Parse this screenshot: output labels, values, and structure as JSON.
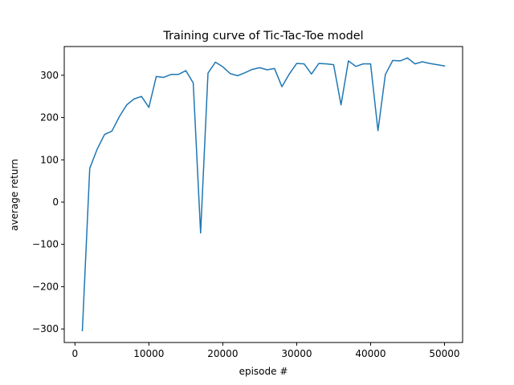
{
  "chart_data": {
    "type": "line",
    "title": "Training curve of Tic-Tac-Toe model",
    "xlabel": "episode #",
    "ylabel": "average return",
    "xlim": [
      -1450,
      52450
    ],
    "ylim": [
      -332,
      368
    ],
    "grid": false,
    "xticks": [
      0,
      10000,
      20000,
      30000,
      40000,
      50000
    ],
    "yticks": [
      -300,
      -200,
      -100,
      0,
      100,
      200,
      300
    ],
    "xtick_labels": [
      "0",
      "10000",
      "20000",
      "30000",
      "40000",
      "50000"
    ],
    "ytick_labels": [
      "−300",
      "−200",
      "−100",
      "0",
      "100",
      "200",
      "300"
    ],
    "series": [
      {
        "color": "#1f77b4",
        "x": [
          1000,
          2000,
          3000,
          4000,
          5000,
          6000,
          7000,
          8000,
          9000,
          10000,
          11000,
          12000,
          13000,
          14000,
          15000,
          16000,
          17000,
          18000,
          19000,
          20000,
          21000,
          22000,
          23000,
          24000,
          25000,
          26000,
          27000,
          28000,
          29000,
          30000,
          31000,
          32000,
          33000,
          34000,
          35000,
          36000,
          37000,
          38000,
          39000,
          40000,
          41000,
          42000,
          43000,
          44000,
          45000,
          46000,
          47000,
          48000,
          49000,
          50000
        ],
        "y": [
          -304,
          80,
          125,
          160,
          168,
          202,
          230,
          244,
          250,
          224,
          297,
          295,
          302,
          302,
          311,
          282,
          -73,
          305,
          331,
          320,
          304,
          299,
          306,
          314,
          318,
          313,
          316,
          273,
          303,
          328,
          327,
          303,
          328,
          327,
          325,
          230,
          334,
          321,
          327,
          327,
          169,
          302,
          335,
          334,
          341,
          327,
          332,
          328,
          325,
          322
        ]
      }
    ]
  }
}
